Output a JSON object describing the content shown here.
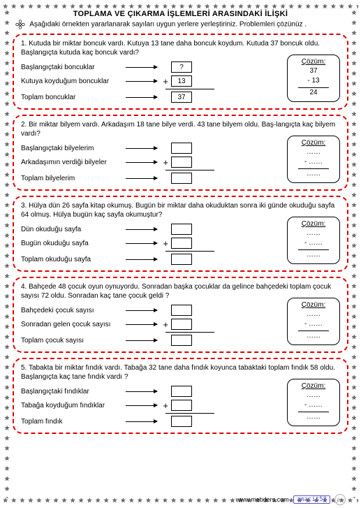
{
  "title": "TOPLAMA VE ÇIKARMA İŞLEMLERİ ARASINDAKİ İLİŞKİ",
  "instruction": "Aşağıdaki örnekten yararlanarak sayıları uygun yerlere yerleştiriniz. Problemleri çözünüz .",
  "problems": [
    {
      "text": "1. Kutuda bir miktar boncuk vardı. Kutuya 13 tane daha boncuk koydum. Kutuda 37 boncuk oldu. Başlangıçta kutuda kaç boncuk vardı?",
      "rows": [
        {
          "label": "Başlangıçtaki boncuklar",
          "op": "",
          "val": "?"
        },
        {
          "label": "Kutuya koyduğum boncuklar",
          "op": "+",
          "val": "13"
        },
        {
          "label": "Toplam boncuklar",
          "op": "",
          "val": "37"
        }
      ],
      "solution": {
        "a": "37",
        "b": "- 13",
        "r": "24"
      }
    },
    {
      "text": "2. Bir miktar bilyem vardı. Arkadaşım 18 tane bilye verdi. 43 tane bilyem oldu. Baş-langıçta kaç bilyem vardı?",
      "rows": [
        {
          "label": "Başlangıçtaki bilyelerim",
          "op": "",
          "val": ""
        },
        {
          "label": "Arkadaşımın verdiği bilyeler",
          "op": "+",
          "val": ""
        },
        {
          "label": "Toplam bilyelerim",
          "op": "",
          "val": ""
        }
      ],
      "solution": {
        "a": "……",
        "b": "- ……",
        "r": "……"
      }
    },
    {
      "text": "3. Hülya dün 26 sayfa kitap okumuş. Bugün bir miktar daha okuduktan sonra iki günde okuduğu sayfa 64 olmuş. Hülya bugün kaç sayfa okumuştur?",
      "rows": [
        {
          "label": "Dün okuduğu sayfa",
          "op": "",
          "val": ""
        },
        {
          "label": "Bugün okuduğu sayfa",
          "op": "+",
          "val": ""
        },
        {
          "label": "Toplam okuduğu sayfa",
          "op": "",
          "val": ""
        }
      ],
      "solution": {
        "a": "……",
        "b": "- ……",
        "r": "……"
      }
    },
    {
      "text": "4. Bahçede 48 çocuk oyun oynuyordu. Sonradan başka çocuklar da gelince bahçedeki toplam çocuk sayısı 72 oldu. Sonradan kaç tane çocuk geldi ?",
      "rows": [
        {
          "label": "Bahçedeki çocuk sayısı",
          "op": "",
          "val": ""
        },
        {
          "label": "Sonradan gelen çocuk sayısı",
          "op": "+",
          "val": ""
        },
        {
          "label": "Toplam çocuk sayısı",
          "op": "",
          "val": ""
        }
      ],
      "solution": {
        "a": "……",
        "b": "- ……",
        "r": "……"
      }
    },
    {
      "text": "5. Tabakta bir miktar fındık vardı. Tabağa 32 tane daha fındık koyunca tabaktaki toplam fındık 58 oldu. Başlangıçta kaç tane fındık vardı ?",
      "rows": [
        {
          "label": "Başlangıçtaki fındıklar",
          "op": "",
          "val": ""
        },
        {
          "label": "Tabağa koyduğum fındıklar",
          "op": "+",
          "val": ""
        },
        {
          "label": "Toplam fındık",
          "op": "",
          "val": ""
        }
      ],
      "solution": {
        "a": "……",
        "b": "- ……",
        "r": "……"
      }
    }
  ],
  "footer": {
    "site": "www.mebders.com",
    "tag": "zmacit58",
    "mark": "jm"
  },
  "colors": {
    "border": "#d00000",
    "star": "#000000"
  }
}
